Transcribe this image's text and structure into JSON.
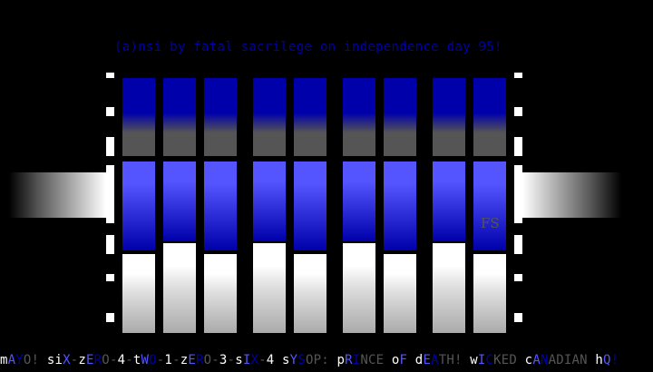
{
  "credit": "(a)nsi by fatal sacrilege on independence day 95!",
  "signature": "FS",
  "colors": {
    "dark_blue": "#0000aa",
    "light_blue": "#5555ff",
    "dark_gray": "#555555",
    "light_gray": "#aaaaaa",
    "white": "#ffffff"
  },
  "footer": [
    [
      "m",
      "#ffffff"
    ],
    [
      "A",
      "#5555ff"
    ],
    [
      "Y",
      "#0000aa"
    ],
    [
      "O!",
      "#555555"
    ],
    [
      " s",
      "#ffffff"
    ],
    [
      "i",
      "#ffffff"
    ],
    [
      "X",
      "#5555ff"
    ],
    [
      "-",
      "#555555"
    ],
    [
      "z",
      "#ffffff"
    ],
    [
      "E",
      "#5555ff"
    ],
    [
      "R",
      "#0000aa"
    ],
    [
      "O",
      "#555555"
    ],
    [
      "-",
      "#555555"
    ],
    [
      "4",
      "#ffffff"
    ],
    [
      "-",
      "#555555"
    ],
    [
      "t",
      "#ffffff"
    ],
    [
      "W",
      "#5555ff"
    ],
    [
      "O",
      "#0000aa"
    ],
    [
      "-",
      "#555555"
    ],
    [
      "1",
      "#ffffff"
    ],
    [
      "-",
      "#555555"
    ],
    [
      "z",
      "#ffffff"
    ],
    [
      "E",
      "#5555ff"
    ],
    [
      "R",
      "#0000aa"
    ],
    [
      "O",
      "#555555"
    ],
    [
      "-",
      "#555555"
    ],
    [
      "3",
      "#ffffff"
    ],
    [
      "-",
      "#555555"
    ],
    [
      "s",
      "#ffffff"
    ],
    [
      "I",
      "#5555ff"
    ],
    [
      "X",
      "#0000aa"
    ],
    [
      "-",
      "#555555"
    ],
    [
      "4",
      "#ffffff"
    ],
    [
      " s",
      "#ffffff"
    ],
    [
      "Y",
      "#5555ff"
    ],
    [
      "S",
      "#0000aa"
    ],
    [
      "OP:",
      "#555555"
    ],
    [
      " p",
      "#ffffff"
    ],
    [
      "R",
      "#5555ff"
    ],
    [
      "I",
      "#0000aa"
    ],
    [
      "NCE",
      "#555555"
    ],
    [
      " o",
      "#ffffff"
    ],
    [
      "F",
      "#5555ff"
    ],
    [
      " d",
      "#ffffff"
    ],
    [
      "E",
      "#5555ff"
    ],
    [
      "A",
      "#0000aa"
    ],
    [
      "TH!",
      "#555555"
    ],
    [
      " w",
      "#ffffff"
    ],
    [
      "I",
      "#5555ff"
    ],
    [
      "C",
      "#0000aa"
    ],
    [
      "KED",
      "#555555"
    ],
    [
      " c",
      "#ffffff"
    ],
    [
      "A",
      "#5555ff"
    ],
    [
      "N",
      "#0000aa"
    ],
    [
      "ADIAN",
      "#555555"
    ],
    [
      " h",
      "#ffffff"
    ],
    [
      "Q",
      "#5555ff"
    ],
    [
      "!",
      "#0000aa"
    ]
  ]
}
